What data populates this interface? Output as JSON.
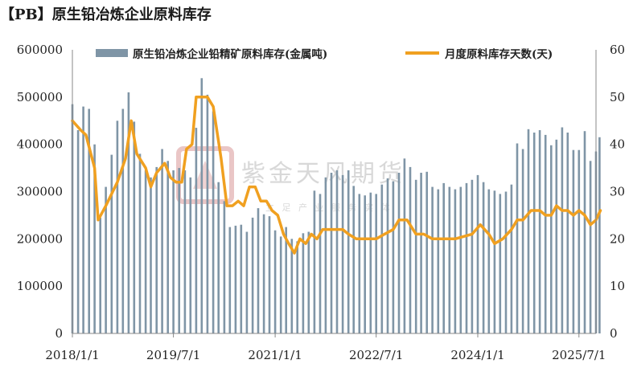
{
  "title": "【PB】原生铅冶炼企业原料库存",
  "watermark": {
    "name": "紫金天风期货",
    "slogan": "立 足 产 业 服 务 实 体"
  },
  "colors": {
    "bar": "#7f95a6",
    "line": "#f0a020",
    "axis": "#888888"
  },
  "chart_data": {
    "type": "bar+line",
    "x_start": "2018-01-01",
    "x_end": "2025-10-01",
    "x_ticks": [
      "2018/1/1",
      "2019/7/1",
      "2021/1/1",
      "2022/7/1",
      "2024/1/1",
      "2025/7/1"
    ],
    "y_left": {
      "min": 0,
      "max": 600000,
      "ticks": [
        0,
        100000,
        200000,
        300000,
        400000,
        500000,
        600000
      ]
    },
    "y_right": {
      "min": 0,
      "max": 60,
      "ticks": [
        0,
        10,
        20,
        30,
        40,
        50,
        60
      ]
    },
    "grid": false,
    "legend_position": "top",
    "series": [
      {
        "name": "原生铅冶炼企业铅精矿原料库存(金属吨)",
        "kind": "bar",
        "axis": "left",
        "points": [
          [
            "2018-01-01",
            485000
          ],
          [
            "2018-02-01",
            430000
          ],
          [
            "2018-03-01",
            480000
          ],
          [
            "2018-04-01",
            475000
          ],
          [
            "2018-05-01",
            400000
          ],
          [
            "2018-06-01",
            245000
          ],
          [
            "2018-07-01",
            310000
          ],
          [
            "2018-08-01",
            378000
          ],
          [
            "2018-09-01",
            450000
          ],
          [
            "2018-10-01",
            475000
          ],
          [
            "2018-11-01",
            510000
          ],
          [
            "2018-12-01",
            448000
          ],
          [
            "2019-01-01",
            380000
          ],
          [
            "2019-02-01",
            345000
          ],
          [
            "2019-03-01",
            330000
          ],
          [
            "2019-04-01",
            352000
          ],
          [
            "2019-05-01",
            390000
          ],
          [
            "2019-06-01",
            365000
          ],
          [
            "2019-07-01",
            345000
          ],
          [
            "2019-08-01",
            350000
          ],
          [
            "2019-09-01",
            345000
          ],
          [
            "2019-10-01",
            330000
          ],
          [
            "2019-11-01",
            435000
          ],
          [
            "2019-12-01",
            540000
          ],
          [
            "2020-01-01",
            505000
          ],
          [
            "2020-02-01",
            470000
          ],
          [
            "2020-03-01",
            320000
          ],
          [
            "2020-04-01",
            280000
          ],
          [
            "2020-05-01",
            225000
          ],
          [
            "2020-06-01",
            228000
          ],
          [
            "2020-07-01",
            230000
          ],
          [
            "2020-08-01",
            215000
          ],
          [
            "2020-09-01",
            245000
          ],
          [
            "2020-10-01",
            265000
          ],
          [
            "2020-11-01",
            252000
          ],
          [
            "2020-12-01",
            248000
          ],
          [
            "2021-01-01",
            218000
          ],
          [
            "2021-02-01",
            205000
          ],
          [
            "2021-03-01",
            225000
          ],
          [
            "2021-04-01",
            200000
          ],
          [
            "2021-05-01",
            195000
          ],
          [
            "2021-06-01",
            212000
          ],
          [
            "2021-07-01",
            215000
          ],
          [
            "2021-08-01",
            302000
          ],
          [
            "2021-09-01",
            295000
          ],
          [
            "2021-10-01",
            330000
          ],
          [
            "2021-11-01",
            340000
          ],
          [
            "2021-12-01",
            345000
          ],
          [
            "2022-01-01",
            335000
          ],
          [
            "2022-02-01",
            345000
          ],
          [
            "2022-03-01",
            312000
          ],
          [
            "2022-04-01",
            295000
          ],
          [
            "2022-05-01",
            292000
          ],
          [
            "2022-06-01",
            298000
          ],
          [
            "2022-07-01",
            295000
          ],
          [
            "2022-08-01",
            315000
          ],
          [
            "2022-09-01",
            328000
          ],
          [
            "2022-10-01",
            322000
          ],
          [
            "2022-11-01",
            340000
          ],
          [
            "2022-12-01",
            370000
          ],
          [
            "2023-01-01",
            352000
          ],
          [
            "2023-02-01",
            325000
          ],
          [
            "2023-03-01",
            340000
          ],
          [
            "2023-04-01",
            342000
          ],
          [
            "2023-05-01",
            310000
          ],
          [
            "2023-06-01",
            305000
          ],
          [
            "2023-07-01",
            318000
          ],
          [
            "2023-08-01",
            310000
          ],
          [
            "2023-09-01",
            305000
          ],
          [
            "2023-10-01",
            310000
          ],
          [
            "2023-11-01",
            318000
          ],
          [
            "2023-12-01",
            325000
          ],
          [
            "2024-01-01",
            335000
          ],
          [
            "2024-02-01",
            320000
          ],
          [
            "2024-03-01",
            305000
          ],
          [
            "2024-04-01",
            302000
          ],
          [
            "2024-05-01",
            295000
          ],
          [
            "2024-06-01",
            300000
          ],
          [
            "2024-07-01",
            315000
          ],
          [
            "2024-08-01",
            402000
          ],
          [
            "2024-09-01",
            390000
          ],
          [
            "2024-10-01",
            432000
          ],
          [
            "2024-11-01",
            425000
          ],
          [
            "2024-12-01",
            430000
          ],
          [
            "2025-01-01",
            420000
          ],
          [
            "2025-02-01",
            398000
          ],
          [
            "2025-03-01",
            410000
          ],
          [
            "2025-04-01",
            436000
          ],
          [
            "2025-05-01",
            425000
          ],
          [
            "2025-06-01",
            388000
          ],
          [
            "2025-07-01",
            388000
          ],
          [
            "2025-08-01",
            428000
          ],
          [
            "2025-09-01",
            365000
          ],
          [
            "2025-10-01",
            385000
          ],
          [
            "2025-10-20",
            415000
          ]
        ]
      },
      {
        "name": "月度原料库存天数(天)",
        "kind": "line",
        "axis": "right",
        "points": [
          [
            "2018-01-01",
            45
          ],
          [
            "2018-02-15",
            43
          ],
          [
            "2018-03-15",
            42
          ],
          [
            "2018-05-01",
            35
          ],
          [
            "2018-05-20",
            24
          ],
          [
            "2018-07-01",
            27
          ],
          [
            "2018-09-01",
            32
          ],
          [
            "2018-10-15",
            37
          ],
          [
            "2018-11-15",
            45
          ],
          [
            "2018-12-15",
            38
          ],
          [
            "2019-02-01",
            35
          ],
          [
            "2019-03-01",
            31
          ],
          [
            "2019-04-01",
            34
          ],
          [
            "2019-05-15",
            36
          ],
          [
            "2019-06-15",
            33
          ],
          [
            "2019-07-15",
            32
          ],
          [
            "2019-08-15",
            32
          ],
          [
            "2019-09-10",
            39
          ],
          [
            "2019-10-10",
            40
          ],
          [
            "2019-11-01",
            50
          ],
          [
            "2020-01-01",
            50
          ],
          [
            "2020-02-01",
            48
          ],
          [
            "2020-03-15",
            37
          ],
          [
            "2020-04-15",
            27
          ],
          [
            "2020-05-15",
            27
          ],
          [
            "2020-06-15",
            28
          ],
          [
            "2020-07-15",
            27
          ],
          [
            "2020-08-15",
            31
          ],
          [
            "2020-09-15",
            31
          ],
          [
            "2020-10-15",
            28
          ],
          [
            "2020-11-15",
            28
          ],
          [
            "2020-12-15",
            26
          ],
          [
            "2021-01-15",
            25
          ],
          [
            "2021-02-15",
            21
          ],
          [
            "2021-03-15",
            19
          ],
          [
            "2021-04-15",
            17
          ],
          [
            "2021-05-15",
            20
          ],
          [
            "2021-06-15",
            19
          ],
          [
            "2021-07-15",
            21
          ],
          [
            "2021-08-15",
            20
          ],
          [
            "2021-09-15",
            22
          ],
          [
            "2021-11-01",
            22
          ],
          [
            "2022-01-01",
            22
          ],
          [
            "2022-02-01",
            21
          ],
          [
            "2022-03-15",
            20
          ],
          [
            "2022-05-01",
            20
          ],
          [
            "2022-07-01",
            20
          ],
          [
            "2022-08-15",
            21
          ],
          [
            "2022-10-01",
            22
          ],
          [
            "2022-11-01",
            24
          ],
          [
            "2022-12-15",
            24
          ],
          [
            "2023-02-01",
            21
          ],
          [
            "2023-03-15",
            21
          ],
          [
            "2023-05-01",
            20
          ],
          [
            "2023-07-01",
            20
          ],
          [
            "2023-09-01",
            20
          ],
          [
            "2023-10-15",
            20.5
          ],
          [
            "2023-12-01",
            21
          ],
          [
            "2024-01-15",
            23
          ],
          [
            "2024-03-01",
            21
          ],
          [
            "2024-04-01",
            19
          ],
          [
            "2024-05-15",
            20
          ],
          [
            "2024-07-01",
            22
          ],
          [
            "2024-08-01",
            24
          ],
          [
            "2024-09-01",
            24
          ],
          [
            "2024-10-15",
            26
          ],
          [
            "2024-12-01",
            26
          ],
          [
            "2025-01-01",
            25
          ],
          [
            "2025-02-01",
            25
          ],
          [
            "2025-03-01",
            27
          ],
          [
            "2025-04-01",
            26
          ],
          [
            "2025-05-01",
            26
          ],
          [
            "2025-06-01",
            25
          ],
          [
            "2025-07-01",
            26
          ],
          [
            "2025-08-01",
            25
          ],
          [
            "2025-09-01",
            23
          ],
          [
            "2025-10-01",
            24
          ],
          [
            "2025-10-25",
            26
          ]
        ]
      }
    ]
  }
}
